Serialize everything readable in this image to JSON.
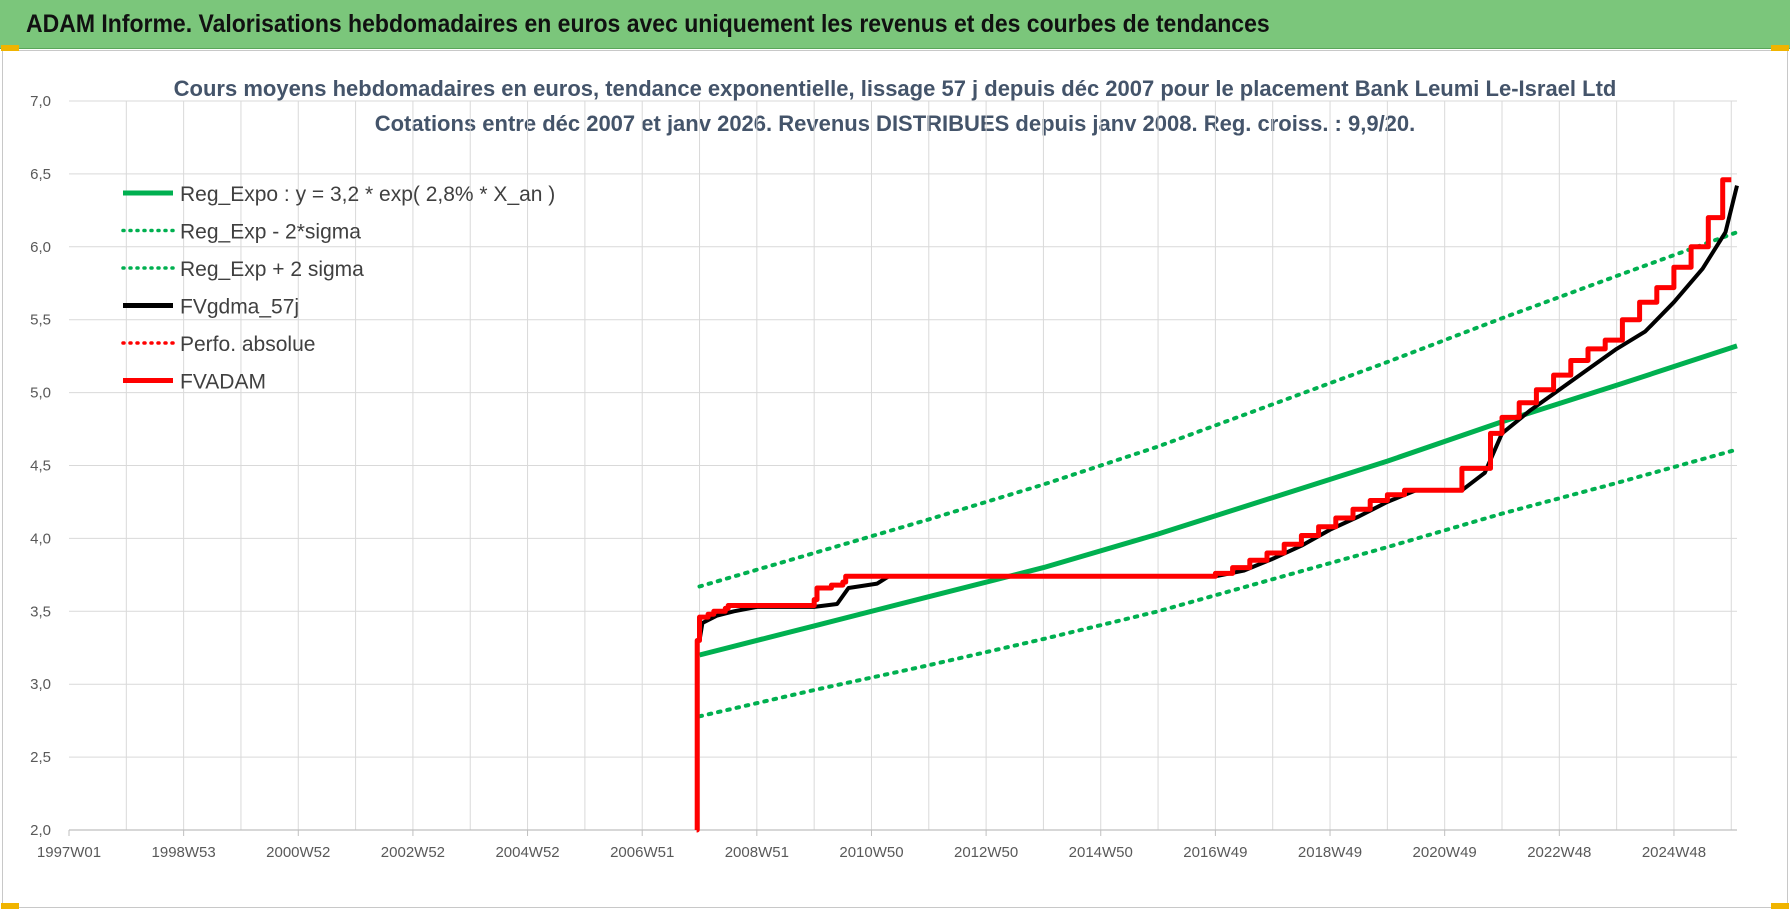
{
  "banner": {
    "title": "ADAM Informe. Valorisations hebdomadaires en euros avec uniquement les revenus et des courbes de tendances",
    "color": "#7bc67b"
  },
  "chart_data": {
    "type": "line",
    "title": "Cours moyens hebdomadaires en euros, tendance exponentielle, lissage 57 j depuis déc 2007 pour le placement Bank Leumi Le-Israel Ltd",
    "subtitle": "Cotations entre déc 2007 et janv 2026. Revenus DISTRIBUES depuis janv 2008. Reg. croiss. : 9,9/20.",
    "xlabel": "",
    "ylabel": "",
    "x_tick_labels": [
      "1997W01",
      "1998W53",
      "2000W52",
      "2002W52",
      "2004W52",
      "2006W51",
      "2008W51",
      "2010W50",
      "2012W50",
      "2014W50",
      "2016W49",
      "2018W49",
      "2020W49",
      "2022W48",
      "2024W48"
    ],
    "y_tick_labels": [
      "2,0",
      "2,5",
      "3,0",
      "3,5",
      "4,0",
      "4,5",
      "5,0",
      "5,5",
      "6,0",
      "6,5",
      "7,0"
    ],
    "xlim": [
      1997.0,
      2026.1
    ],
    "ylim": [
      2.0,
      7.0
    ],
    "grid": true,
    "legend_position": "top-left",
    "series": [
      {
        "name": "Reg_Expo : y = 3,2 * exp( 2,8% *  X_an )",
        "color": "#00b050",
        "style": "solid",
        "x": [
          2008.0,
          2010.0,
          2012.0,
          2014.0,
          2016.0,
          2018.0,
          2020.0,
          2022.0,
          2024.0,
          2026.1
        ],
        "y": [
          3.2,
          3.4,
          3.6,
          3.8,
          4.03,
          4.28,
          4.53,
          4.8,
          5.05,
          5.32
        ]
      },
      {
        "name": "Reg_Exp - 2*sigma",
        "color": "#00b050",
        "style": "dotted",
        "x": [
          2008.0,
          2010.0,
          2012.0,
          2014.0,
          2016.0,
          2018.0,
          2020.0,
          2022.0,
          2024.0,
          2026.1
        ],
        "y": [
          2.78,
          2.96,
          3.13,
          3.31,
          3.5,
          3.72,
          3.94,
          4.17,
          4.38,
          4.61
        ]
      },
      {
        "name": "Reg_Exp + 2 sigma",
        "color": "#00b050",
        "style": "dotted",
        "x": [
          2008.0,
          2010.0,
          2012.0,
          2014.0,
          2016.0,
          2018.0,
          2020.0,
          2022.0,
          2024.0,
          2026.1
        ],
        "y": [
          3.67,
          3.9,
          4.13,
          4.37,
          4.63,
          4.92,
          5.21,
          5.51,
          5.8,
          6.1
        ]
      },
      {
        "name": "FVgdma_57j",
        "color": "#000000",
        "style": "solid",
        "x": [
          2008.0,
          2008.05,
          2008.3,
          2008.6,
          2009.0,
          2010.0,
          2010.4,
          2010.6,
          2011.1,
          2011.3,
          2017.0,
          2017.5,
          2018.0,
          2018.5,
          2019.0,
          2019.5,
          2020.0,
          2020.5,
          2021.3,
          2021.7,
          2022.0,
          2022.5,
          2023.0,
          2023.5,
          2024.0,
          2024.5,
          2025.0,
          2025.5,
          2025.9,
          2026.1
        ],
        "y": [
          3.3,
          3.42,
          3.47,
          3.5,
          3.53,
          3.53,
          3.55,
          3.66,
          3.69,
          3.74,
          3.74,
          3.78,
          3.86,
          3.95,
          4.06,
          4.15,
          4.25,
          4.33,
          4.33,
          4.45,
          4.72,
          4.88,
          5.02,
          5.16,
          5.3,
          5.42,
          5.62,
          5.85,
          6.1,
          6.42
        ]
      },
      {
        "name": "Perfo. absolue",
        "color": "#ff0000",
        "style": "dotted",
        "x": [],
        "y": []
      },
      {
        "name": "FVADAM",
        "color": "#ff0000",
        "style": "step",
        "x": [
          2007.95,
          2007.96,
          2008.0,
          2008.15,
          2008.25,
          2008.45,
          2008.5,
          2008.55,
          2010.0,
          2010.05,
          2010.3,
          2010.5,
          2010.55,
          2017.0,
          2017.3,
          2017.6,
          2017.9,
          2018.2,
          2018.5,
          2018.8,
          2019.1,
          2019.4,
          2019.7,
          2020.0,
          2020.3,
          2020.6,
          2021.3,
          2021.8,
          2022.0,
          2022.3,
          2022.6,
          2022.9,
          2023.2,
          2023.5,
          2023.8,
          2024.1,
          2024.4,
          2024.7,
          2025.0,
          2025.3,
          2025.6,
          2025.85,
          2026.0
        ],
        "y": [
          2.0,
          3.3,
          3.46,
          3.48,
          3.5,
          3.52,
          3.54,
          3.54,
          3.58,
          3.66,
          3.68,
          3.7,
          3.74,
          3.76,
          3.8,
          3.85,
          3.9,
          3.96,
          4.02,
          4.08,
          4.14,
          4.2,
          4.26,
          4.3,
          4.33,
          4.33,
          4.48,
          4.72,
          4.83,
          4.93,
          5.02,
          5.12,
          5.22,
          5.3,
          5.36,
          5.5,
          5.62,
          5.72,
          5.86,
          6.0,
          6.2,
          6.46,
          6.46
        ]
      }
    ]
  }
}
